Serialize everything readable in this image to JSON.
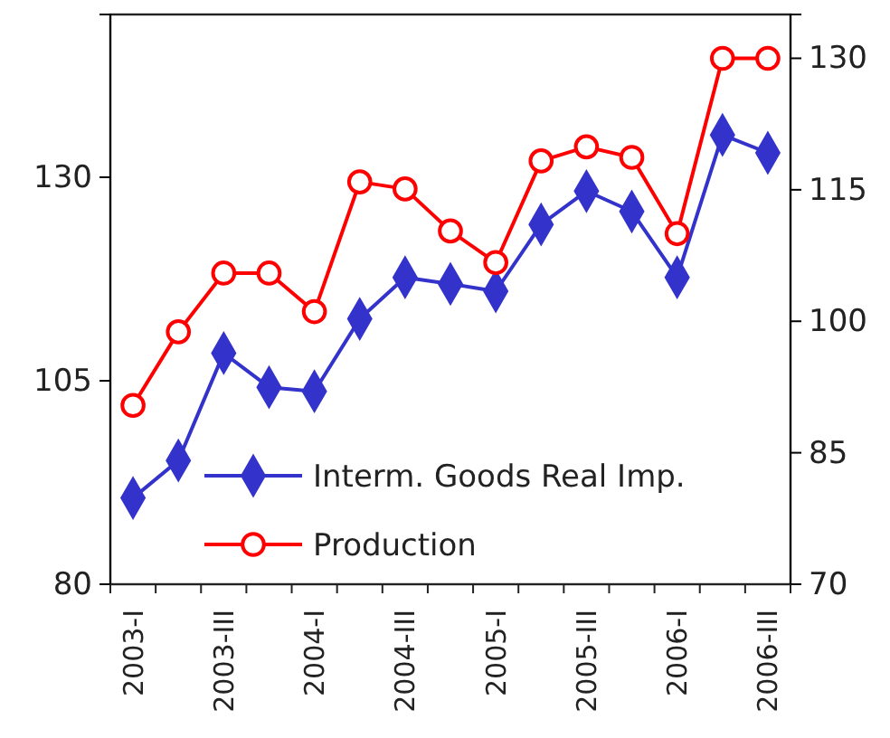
{
  "chart_data": {
    "type": "line",
    "categories": [
      "2003-I",
      null,
      "2003-III",
      null,
      "2004-I",
      null,
      "2004-III",
      null,
      "2005-I",
      null,
      "2005-III",
      null,
      "2006-I",
      null,
      "2006-III"
    ],
    "series": [
      {
        "name": "Interm. Goods Real Imp.",
        "color": "#3333cc",
        "marker": "diamond",
        "values": [
          90.6,
          95.2,
          108.4,
          104.2,
          103.7,
          112.6,
          117.7,
          116.9,
          116.0,
          124.2,
          128.3,
          125.8,
          117.7,
          135.2,
          133.0
        ]
      },
      {
        "name": "Production",
        "color": "#ff0000",
        "marker": "circle",
        "axis": "y2",
        "values": [
          90.4,
          98.8,
          105.5,
          105.5,
          101.1,
          115.9,
          115.1,
          110.3,
          106.7,
          118.3,
          119.9,
          118.7,
          110.0,
          130,
          130
        ]
      }
    ],
    "ylim": [
      80,
      150
    ],
    "yticks": [
      80,
      105,
      130
    ],
    "y2lim": [
      70,
      135
    ],
    "y2ticks": [
      70,
      85,
      100,
      115,
      130
    ],
    "grid": false,
    "legend": "bottom",
    "line_style": "solid"
  }
}
